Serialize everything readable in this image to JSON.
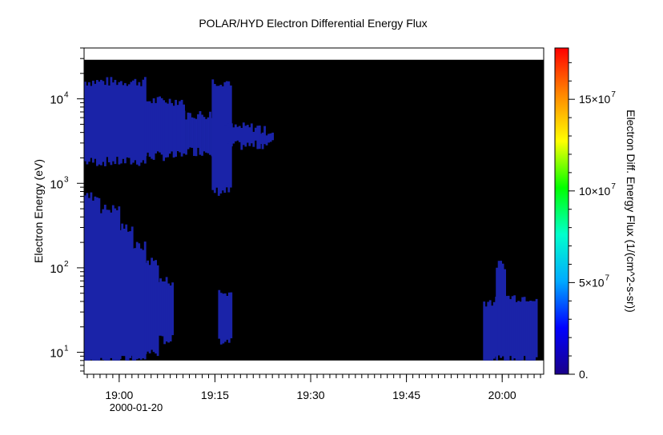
{
  "chart_data": {
    "type": "heatmap",
    "title": "POLAR/HYD  Electron Differential Energy Flux",
    "ylabel": "Electron Energy (eV)",
    "colorbar_label": "Electron Diff. Energy Flux (1/(cm^2-s-sr))",
    "date_label": "2000-01-20",
    "x_axis": {
      "type": "time",
      "range": [
        "18:54:30",
        "20:06:30"
      ],
      "ticks": [
        "19:00",
        "19:15",
        "19:30",
        "19:45",
        "20:00"
      ],
      "minor_tick_minutes": 1
    },
    "y_axis": {
      "scale": "log",
      "range": [
        5.5,
        40000
      ],
      "data_range": [
        8,
        29000
      ],
      "ticks": [
        {
          "value": 10,
          "base": "10",
          "exp": "1"
        },
        {
          "value": 100,
          "base": "10",
          "exp": "2"
        },
        {
          "value": 1000,
          "base": "10",
          "exp": "3"
        },
        {
          "value": 10000,
          "base": "10",
          "exp": "4"
        }
      ]
    },
    "colorbar": {
      "range": [
        0,
        178000000
      ],
      "ticks": [
        {
          "value": 0,
          "label": "0."
        },
        {
          "value": 50000000,
          "label": "5×10",
          "exp": "7"
        },
        {
          "value": 100000000,
          "label": "10×10",
          "exp": "7"
        },
        {
          "value": 150000000,
          "label": "15×10",
          "exp": "7"
        }
      ],
      "colormap": [
        "#1a0088",
        "#0000ff",
        "#00aaff",
        "#00ffcc",
        "#00ff00",
        "#ffff00",
        "#ff8800",
        "#ff0000"
      ]
    },
    "background_color": "#000000",
    "signal_color": "#1a23a8",
    "regions": [
      {
        "t_start": "18:54:30",
        "t_end": "19:04:00",
        "e_low": 1800,
        "e_high": 16000,
        "flux": 20000000
      },
      {
        "t_start": "19:04:00",
        "t_end": "19:10:00",
        "e_low": 2100,
        "e_high": 9500,
        "flux": 18000000
      },
      {
        "t_start": "19:10:00",
        "t_end": "19:16:30",
        "e_low": 2400,
        "e_high": 6500,
        "flux": 18000000
      },
      {
        "t_start": "19:14:30",
        "t_end": "19:17:30",
        "e_low": 800,
        "e_high": 16000,
        "flux": 20000000
      },
      {
        "t_start": "19:16:30",
        "t_end": "19:22:00",
        "e_low": 2800,
        "e_high": 4600,
        "flux": 16000000
      },
      {
        "t_start": "19:22:00",
        "t_end": "19:24:00",
        "e_low": 2900,
        "e_high": 4200,
        "flux": 15000000
      },
      {
        "t_start": "18:54:30",
        "t_end": "18:57:00",
        "e_low": 8,
        "e_high": 700,
        "flux": 22000000
      },
      {
        "t_start": "18:57:00",
        "t_end": "19:00:00",
        "e_low": 8,
        "e_high": 500,
        "flux": 22000000
      },
      {
        "t_start": "19:00:00",
        "t_end": "19:02:00",
        "e_low": 8,
        "e_high": 300,
        "flux": 22000000
      },
      {
        "t_start": "19:02:00",
        "t_end": "19:04:00",
        "e_low": 8,
        "e_high": 180,
        "flux": 20000000
      },
      {
        "t_start": "19:04:00",
        "t_end": "19:06:00",
        "e_low": 10,
        "e_high": 120,
        "flux": 20000000
      },
      {
        "t_start": "19:06:00",
        "t_end": "19:08:30",
        "e_low": 14,
        "e_high": 70,
        "flux": 18000000
      },
      {
        "t_start": "19:15:30",
        "t_end": "19:17:30",
        "e_low": 14,
        "e_high": 50,
        "flux": 15000000
      },
      {
        "t_start": "19:57:00",
        "t_end": "19:59:00",
        "e_low": 8,
        "e_high": 40,
        "flux": 15000000
      },
      {
        "t_start": "19:59:00",
        "t_end": "20:00:30",
        "e_low": 8,
        "e_high": 110,
        "flux": 20000000
      },
      {
        "t_start": "20:00:30",
        "t_end": "20:05:30",
        "e_low": 8,
        "e_high": 45,
        "flux": 18000000
      }
    ]
  }
}
